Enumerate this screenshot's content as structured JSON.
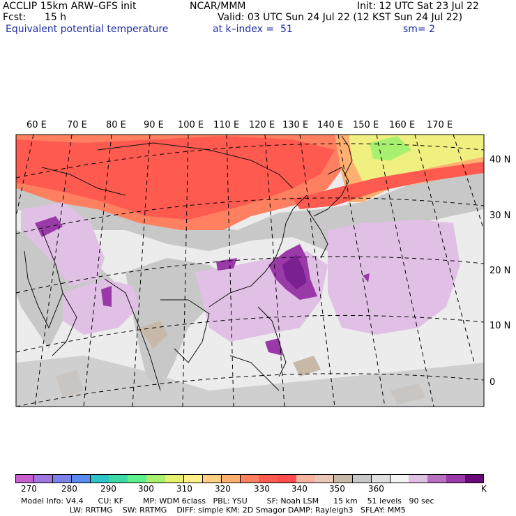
{
  "header": {
    "model": "ACCLIP 15km ARW–GFS init",
    "org": "NCAR/MMM",
    "init": "Init: 12 UTC Sat 23 Jul 22",
    "fcst_label": "Fcst:",
    "fcst_value": "15 h",
    "valid": "Valid: 03 UTC Sun 24 Jul 22 (12 KST Sun 24 Jul 22)",
    "field": "Equivalent potential temperature",
    "level": "at k–index =  51",
    "smooth": "sm= 2"
  },
  "lon_labels": [
    "60 E",
    "70 E",
    "80 E",
    "90 E",
    "100 E",
    "110 E",
    "120 E",
    "130 E",
    "140 E",
    "150 E",
    "160 E",
    "170 E"
  ],
  "lat_labels": [
    "40 N",
    "30 N",
    "20 N",
    "10 N",
    "0"
  ],
  "colorbar": {
    "colors": [
      "#c75fcf",
      "#a077e0",
      "#7b82ea",
      "#5a8cf0",
      "#2fc5c8",
      "#3fd9a8",
      "#5ef08a",
      "#a8f070",
      "#e8f070",
      "#fff08a",
      "#ffd080",
      "#ffb070",
      "#ff8060",
      "#ff5a50",
      "#ff4c4c",
      "#f5b4a0",
      "#e8c8b4",
      "#c8b8a8",
      "#c8c8c8",
      "#e0e0e0",
      "#f4f4f4",
      "#e0c0e4",
      "#b870c0",
      "#9a3aa8",
      "#6a0a78"
    ],
    "labels": [
      "270",
      "280",
      "290",
      "300",
      "310",
      "320",
      "330",
      "340",
      "350",
      "360"
    ],
    "unit": "K"
  },
  "footer": {
    "line1": "Model Info: V4.4      CU: KF        MP: WDM 6class   PBL: YSU        SF: Noah LSM      15 km    51 levels   90 sec",
    "line2": "                    LW: RRTMG    SW: RRTMG    DIFF: simple KM: 2D Smagor DAMP: Rayleigh3   SFLAY: MM5"
  },
  "map_colors": {
    "hot": "#ff5a50",
    "warm": "#ff8060",
    "warm2": "#ffb070",
    "yellow": "#f0f080",
    "green": "#a8f070",
    "tan": "#c8b8a8",
    "grey": "#c8c8c8",
    "light": "#ececec",
    "lilac": "#e0c0e4",
    "purple": "#9a3aa8",
    "deep": "#7a2090"
  }
}
